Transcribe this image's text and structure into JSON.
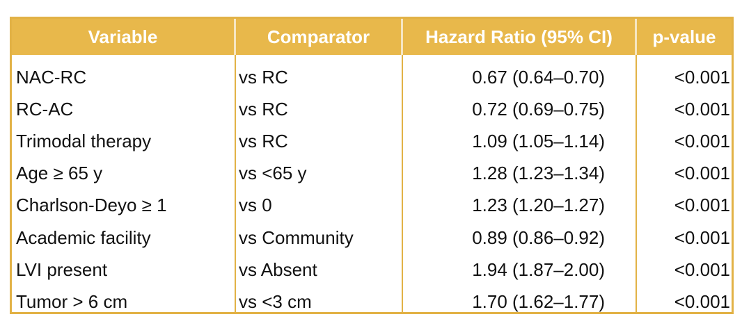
{
  "table": {
    "header": [
      "Variable",
      "Comparator",
      "Hazard Ratio (95% CI)",
      "p-value"
    ],
    "rows": [
      [
        "NAC-RC",
        "vs RC",
        "0.67 (0.64–0.70)",
        "<0.001"
      ],
      [
        "RC-AC",
        "vs RC",
        "0.72 (0.69–0.75)",
        "<0.001"
      ],
      [
        "Trimodal therapy",
        "vs RC",
        "1.09 (1.05–1.14)",
        "<0.001"
      ],
      [
        "Age ≥ 65 y",
        "vs <65 y",
        "1.28 (1.23–1.34)",
        "<0.001"
      ],
      [
        "Charlson-Deyo ≥ 1",
        "vs 0",
        "1.23 (1.20–1.27)",
        "<0.001"
      ],
      [
        "Academic facility",
        "vs Community",
        "0.89 (0.86–0.92)",
        "<0.001"
      ],
      [
        "LVI present",
        "vs Absent",
        "1.94 (1.87–2.00)",
        "<0.001"
      ],
      [
        "Tumor > 6 cm",
        "vs <3 cm",
        "1.70 (1.62–1.77)",
        "<0.001"
      ]
    ]
  }
}
